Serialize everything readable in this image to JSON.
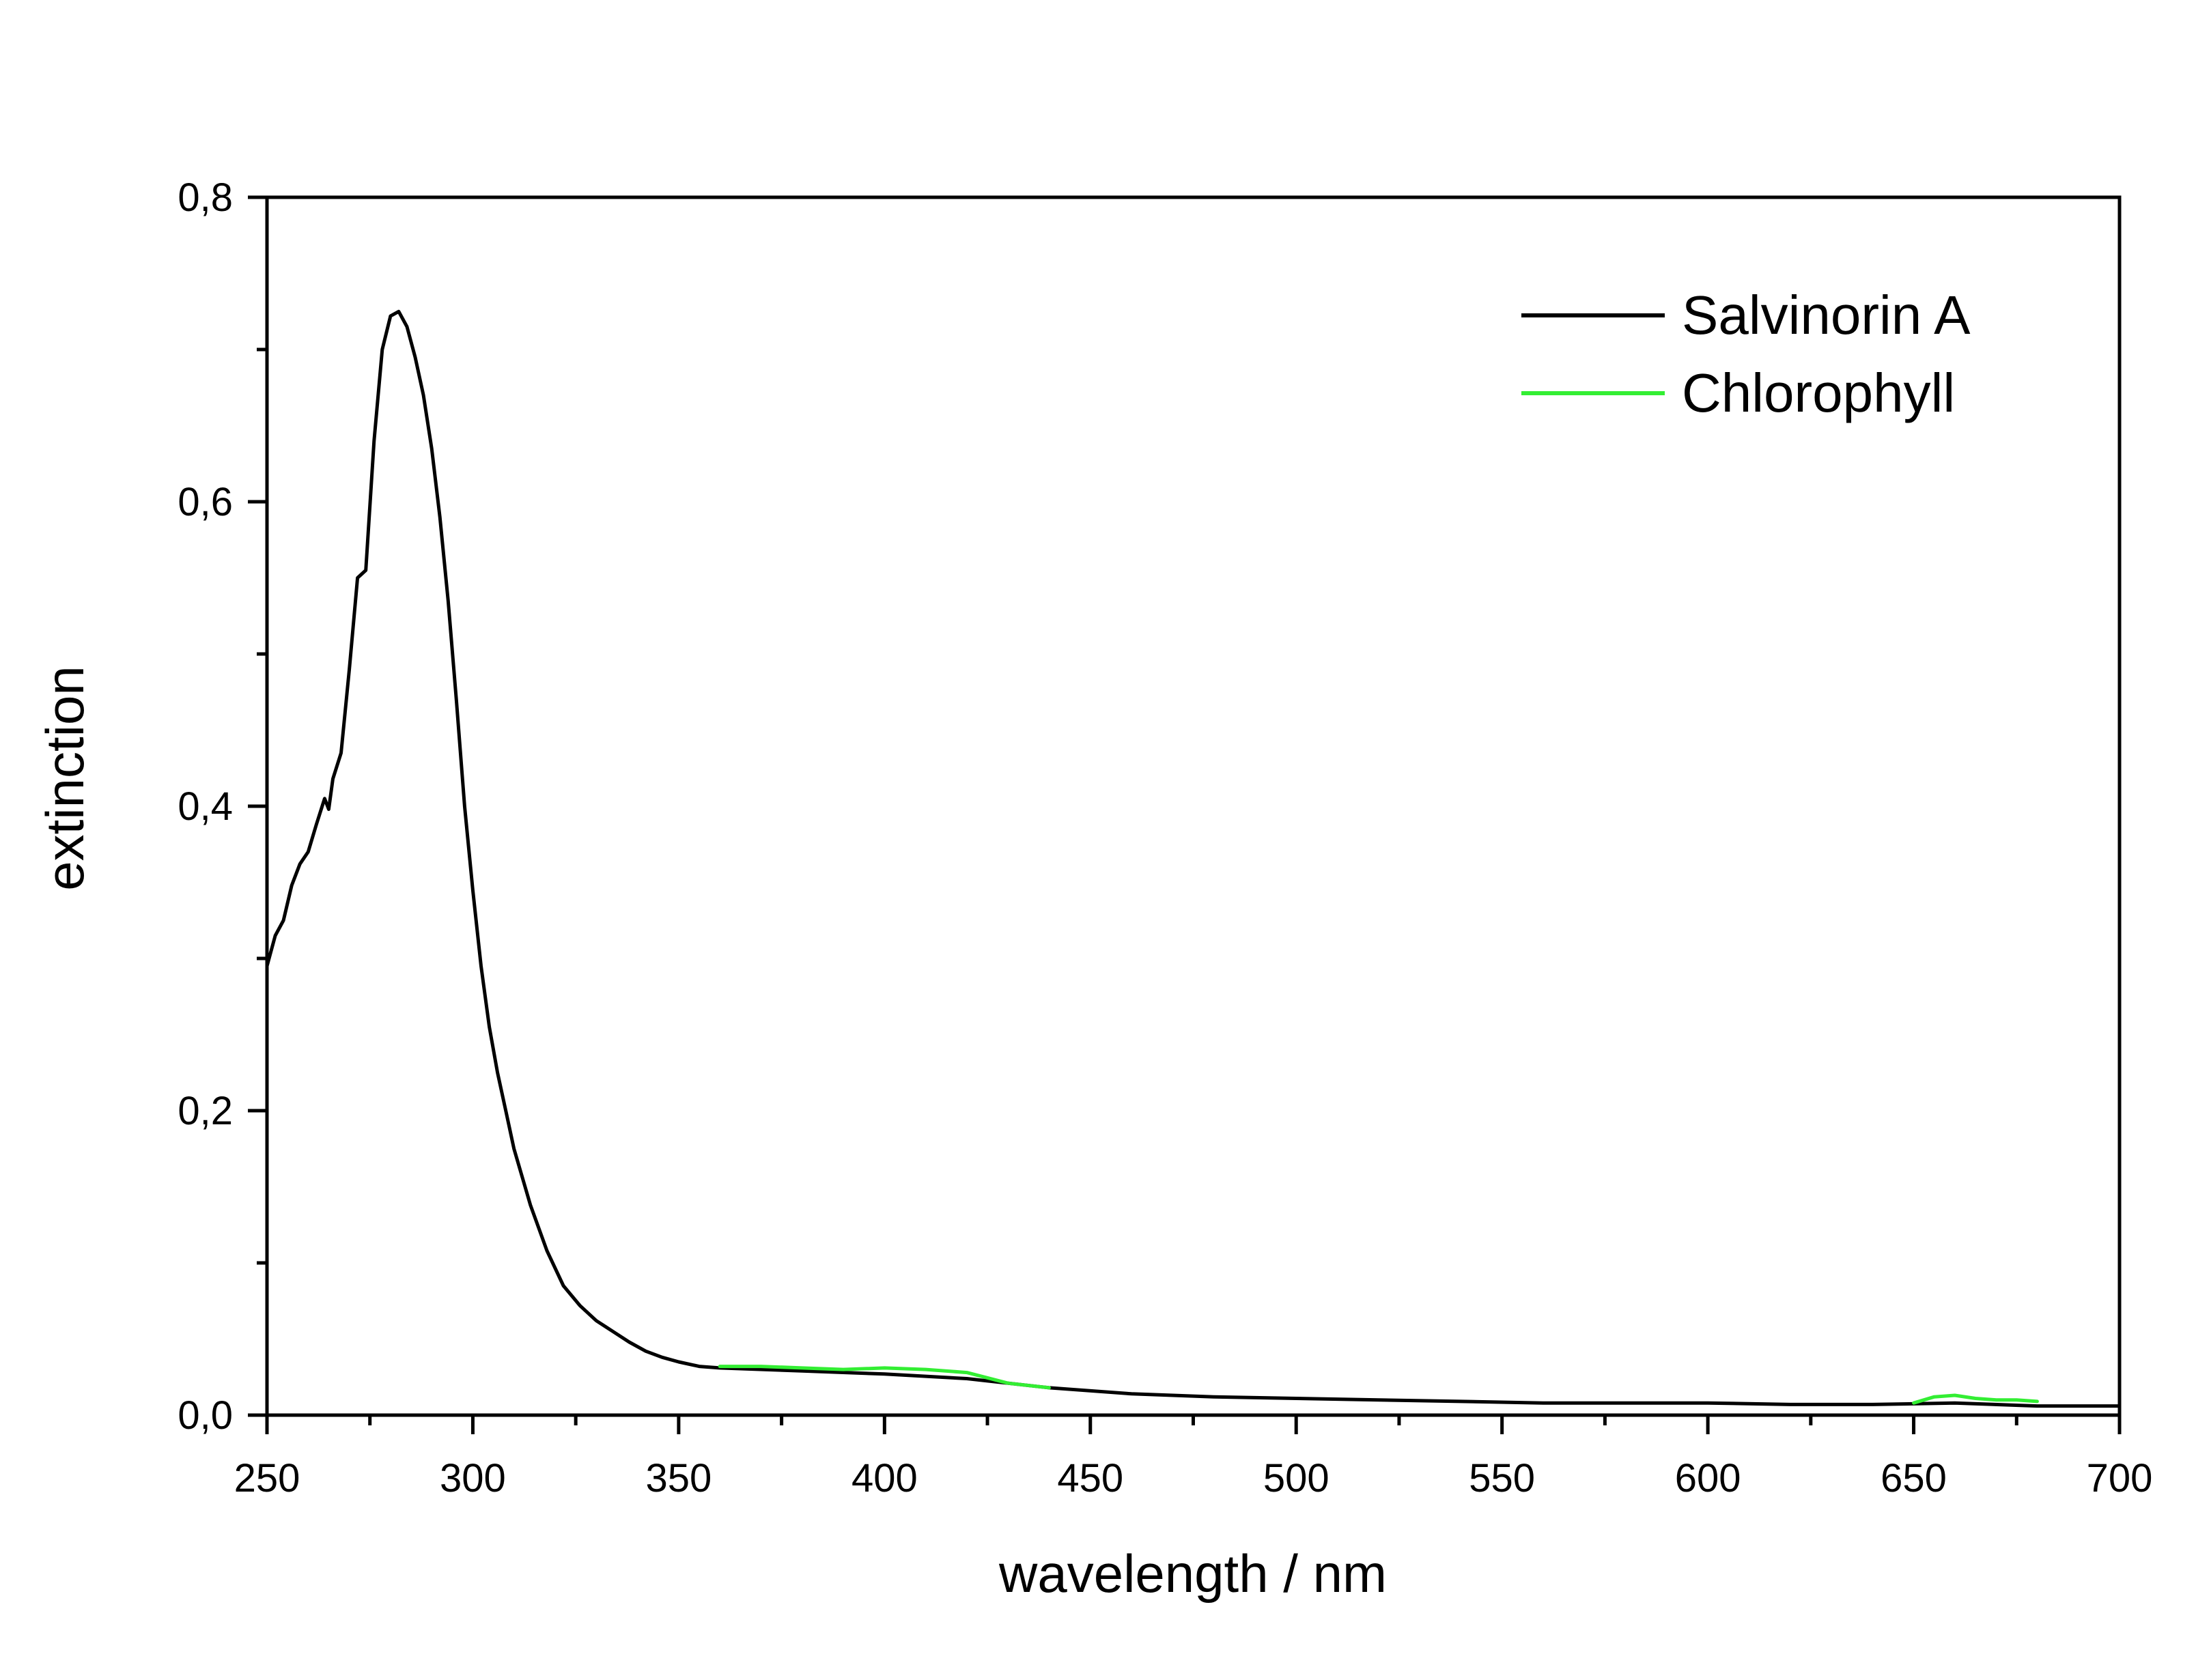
{
  "chart_data": {
    "type": "line",
    "title": "",
    "xlabel": "wavelength / nm",
    "ylabel": "extinction",
    "xlim": [
      250,
      700
    ],
    "ylim": [
      0,
      0.8
    ],
    "x_ticks": [
      250,
      300,
      350,
      400,
      450,
      500,
      550,
      600,
      650,
      700
    ],
    "x_tick_labels": [
      "250",
      "300",
      "350",
      "400",
      "450",
      "500",
      "550",
      "600",
      "650",
      "700"
    ],
    "y_ticks": [
      0.0,
      0.2,
      0.4,
      0.6,
      0.8
    ],
    "y_tick_labels": [
      "0,0",
      "0,2",
      "0,4",
      "0,6",
      "0,8"
    ],
    "grid": false,
    "legend_position": "top-right",
    "series": [
      {
        "name": "Salvinorin A",
        "color": "#000000",
        "x": [
          250,
          252,
          254,
          256,
          258,
          260,
          262,
          264,
          265,
          266,
          268,
          270,
          272,
          274,
          276,
          278,
          280,
          282,
          284,
          286,
          288,
          290,
          292,
          294,
          296,
          298,
          300,
          302,
          304,
          306,
          308,
          310,
          314,
          318,
          322,
          326,
          330,
          334,
          338,
          342,
          346,
          350,
          355,
          360,
          380,
          400,
          420,
          440,
          460,
          480,
          500,
          520,
          540,
          560,
          580,
          600,
          620,
          640,
          660,
          680,
          700
        ],
        "values": [
          0.295,
          0.315,
          0.325,
          0.348,
          0.362,
          0.37,
          0.388,
          0.405,
          0.398,
          0.418,
          0.435,
          0.49,
          0.55,
          0.555,
          0.64,
          0.7,
          0.722,
          0.725,
          0.715,
          0.695,
          0.67,
          0.635,
          0.59,
          0.535,
          0.47,
          0.4,
          0.345,
          0.295,
          0.255,
          0.225,
          0.2,
          0.175,
          0.138,
          0.108,
          0.085,
          0.072,
          0.062,
          0.055,
          0.048,
          0.042,
          0.038,
          0.035,
          0.032,
          0.031,
          0.029,
          0.027,
          0.024,
          0.018,
          0.014,
          0.012,
          0.011,
          0.01,
          0.009,
          0.008,
          0.008,
          0.008,
          0.007,
          0.007,
          0.008,
          0.006,
          0.006
        ]
      },
      {
        "name": "Chlorophyll",
        "color": "#33ee33",
        "x": [
          360,
          370,
          380,
          390,
          400,
          410,
          420,
          430,
          440,
          650,
          655,
          660,
          665,
          670,
          675,
          680
        ],
        "values": [
          0.032,
          0.032,
          0.031,
          0.03,
          0.031,
          0.03,
          0.028,
          0.021,
          0.018,
          0.008,
          0.012,
          0.013,
          0.011,
          0.01,
          0.01,
          0.009
        ]
      }
    ]
  }
}
